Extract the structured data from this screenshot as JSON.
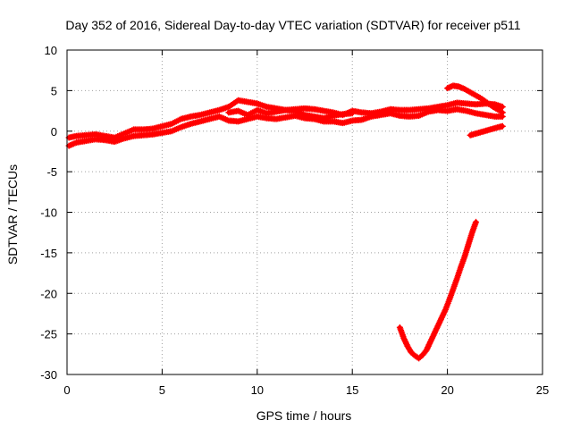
{
  "chart_data": {
    "type": "scatter",
    "title": "Day 352 of 2016, Sidereal Day-to-day VTEC variation (SDTVAR) for receiver p511",
    "xlabel": "GPS time / hours",
    "ylabel": "SDTVAR / TECUs",
    "xlim": [
      0,
      25
    ],
    "ylim": [
      -30,
      10
    ],
    "x_ticks": [
      0,
      5,
      10,
      15,
      20,
      25
    ],
    "y_ticks": [
      -30,
      -25,
      -20,
      -15,
      -10,
      -5,
      0,
      5,
      10
    ],
    "x_tick_labels": [
      "0",
      "5",
      "10",
      "15",
      "20",
      "25"
    ],
    "y_tick_labels": [
      "-30",
      "-25",
      "-20",
      "-15",
      "-10",
      "-5",
      "0",
      "5",
      "10"
    ],
    "grid": true,
    "marker": "+",
    "color": "#ff0000",
    "series": [
      {
        "name": "main-band-upper",
        "x": [
          0.1,
          0.5,
          1.0,
          1.5,
          2.0,
          2.5,
          3.0,
          3.5,
          4.0,
          4.5,
          5.0,
          5.5,
          6.0,
          6.5,
          7.0,
          7.5,
          8.0,
          8.5,
          9.0,
          9.5,
          10.0,
          10.5,
          11.0,
          11.5,
          12.0,
          12.5,
          13.0,
          13.5,
          14.0,
          14.5,
          15.0,
          15.5,
          16.0,
          16.5,
          17.0,
          17.5,
          18.0,
          18.5,
          19.0,
          19.5,
          20.0,
          20.5,
          21.0,
          21.5,
          22.0,
          22.5,
          22.9
        ],
        "y": [
          -0.8,
          -0.6,
          -0.5,
          -0.4,
          -0.6,
          -0.8,
          -0.3,
          0.2,
          0.2,
          0.3,
          0.6,
          0.9,
          1.5,
          1.8,
          2.0,
          2.3,
          2.6,
          3.0,
          3.8,
          3.6,
          3.4,
          3.0,
          2.8,
          2.6,
          2.7,
          2.8,
          2.7,
          2.5,
          2.3,
          2.0,
          2.5,
          2.3,
          2.2,
          2.4,
          2.7,
          2.6,
          2.6,
          2.7,
          2.8,
          3.0,
          3.2,
          3.5,
          3.4,
          3.3,
          3.4,
          3.3,
          3.0
        ]
      },
      {
        "name": "main-band-lower",
        "x": [
          0.1,
          0.5,
          1.0,
          1.5,
          2.0,
          2.5,
          3.0,
          3.5,
          4.0,
          4.5,
          5.0,
          5.5,
          6.0,
          6.5,
          7.0,
          7.5,
          8.0,
          8.5,
          9.0,
          9.5,
          10.0,
          10.5,
          11.0,
          11.5,
          12.0,
          12.5,
          13.0,
          13.5,
          14.0,
          14.5,
          15.0,
          15.5,
          16.0,
          16.5,
          17.0,
          17.5,
          18.0,
          18.5,
          19.0,
          19.5,
          20.0,
          20.5,
          21.0,
          21.5,
          22.0,
          22.5,
          22.9
        ],
        "y": [
          -1.8,
          -1.4,
          -1.2,
          -1.0,
          -1.1,
          -1.3,
          -0.9,
          -0.6,
          -0.5,
          -0.4,
          -0.2,
          0.0,
          0.5,
          0.9,
          1.2,
          1.5,
          1.8,
          1.3,
          1.2,
          1.5,
          1.8,
          1.6,
          1.5,
          1.7,
          1.9,
          1.6,
          1.5,
          1.2,
          1.2,
          1.0,
          1.3,
          1.4,
          1.8,
          2.0,
          2.2,
          1.9,
          1.8,
          1.9,
          2.4,
          2.6,
          2.5,
          2.7,
          2.5,
          2.2,
          2.0,
          1.8,
          1.8
        ]
      },
      {
        "name": "middle-band",
        "x": [
          8.5,
          9.0,
          9.5,
          10.0,
          10.5,
          11.0,
          11.5,
          12.0,
          12.5,
          13.0,
          13.5,
          14.0,
          14.5,
          15.0
        ],
        "y": [
          2.3,
          2.5,
          2.0,
          2.6,
          2.2,
          2.4,
          2.6,
          2.5,
          2.0,
          1.8,
          1.6,
          1.9,
          2.1,
          2.2
        ]
      },
      {
        "name": "upper-arc",
        "x": [
          20.0,
          20.3,
          20.6,
          20.9,
          21.2,
          21.5,
          21.8,
          22.1,
          22.4,
          22.7,
          22.9
        ],
        "y": [
          5.3,
          5.6,
          5.5,
          5.2,
          4.8,
          4.4,
          4.0,
          3.5,
          3.0,
          2.6,
          2.3
        ]
      },
      {
        "name": "right-lower-segment",
        "x": [
          21.2,
          21.5,
          21.8,
          22.1,
          22.4,
          22.7,
          22.9
        ],
        "y": [
          -0.5,
          -0.3,
          -0.1,
          0.1,
          0.3,
          0.5,
          0.6
        ]
      },
      {
        "name": "dip-curve",
        "x": [
          17.5,
          17.7,
          17.9,
          18.1,
          18.3,
          18.5,
          18.7,
          18.9,
          19.1,
          19.3,
          19.5,
          19.7,
          19.9,
          20.1,
          20.3,
          20.5,
          20.7,
          20.9,
          21.1,
          21.3,
          21.5
        ],
        "y": [
          -24.2,
          -25.5,
          -26.5,
          -27.3,
          -27.7,
          -28.0,
          -27.6,
          -27.0,
          -26.0,
          -25.0,
          -24.0,
          -23.0,
          -22.0,
          -20.8,
          -19.5,
          -18.2,
          -16.8,
          -15.5,
          -14.0,
          -12.5,
          -11.2
        ]
      }
    ]
  }
}
